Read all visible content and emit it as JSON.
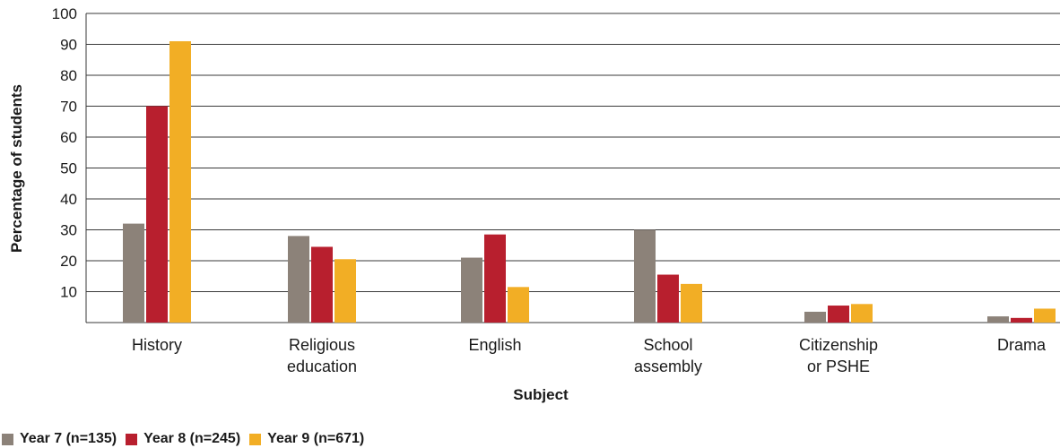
{
  "chart_data": {
    "type": "bar",
    "title": "",
    "xlabel": "Subject",
    "ylabel": "Percentage of students",
    "ylim": [
      0,
      100
    ],
    "yticks": [
      "100",
      "90",
      "80",
      "70",
      "60",
      "50",
      "40",
      "30",
      "20",
      "10"
    ],
    "ytick_values": [
      100,
      90,
      80,
      70,
      60,
      50,
      40,
      30,
      20,
      10
    ],
    "categories": [
      [
        "History"
      ],
      [
        "Religious",
        "education"
      ],
      [
        "English"
      ],
      [
        "School",
        "assembly"
      ],
      [
        "Citizenship",
        "or PSHE"
      ],
      [
        "Drama"
      ]
    ],
    "series": [
      {
        "name": "Year 7 (n=135)",
        "color": "#8c8279",
        "values": [
          32,
          28,
          21,
          30,
          3.5,
          2
        ]
      },
      {
        "name": "Year 8 (n=245)",
        "color": "#b81f2e",
        "values": [
          70,
          24.5,
          28.5,
          15.5,
          5.5,
          1.5
        ]
      },
      {
        "name": "Year 9 (n=671)",
        "color": "#f2ae25",
        "values": [
          91,
          20.5,
          11.5,
          12.5,
          6,
          4.5
        ]
      }
    ],
    "grid": true,
    "legend_position": "bottom-left"
  }
}
